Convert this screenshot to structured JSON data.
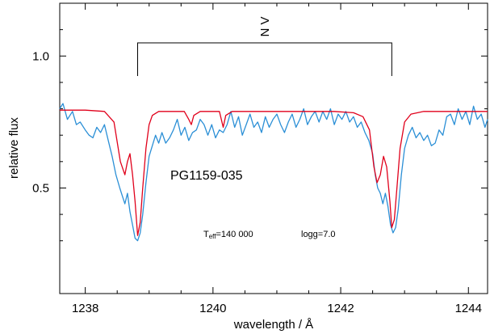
{
  "chart_data": {
    "type": "line",
    "xlabel": "wavelength / Å",
    "ylabel": "relative flux",
    "xlim": [
      1237.6,
      1244.3
    ],
    "ylim": [
      0.1,
      1.2
    ],
    "x_ticks": [
      1238,
      1240,
      1242,
      1244
    ],
    "y_ticks": [
      0.5,
      1.0
    ],
    "x_tick_labels": [
      "1238",
      "1240",
      "1242",
      "1244"
    ],
    "y_tick_labels": [
      "0.5",
      "1.0"
    ],
    "grid": false,
    "annotations": {
      "object": "PG1159-035",
      "teff_prefix": "T",
      "teff_subscript": "eff",
      "teff_value": "=140 000",
      "logg": "logg=7.0",
      "line_id": "N V",
      "line_positions": [
        1238.82,
        1242.8
      ],
      "bracket_flux": 1.05
    },
    "series": [
      {
        "color": "#e0001b",
        "role": "model",
        "x": [
          1237.6,
          1238.0,
          1238.3,
          1238.45,
          1238.55,
          1238.62,
          1238.66,
          1238.7,
          1238.74,
          1238.78,
          1238.82,
          1238.86,
          1238.9,
          1238.95,
          1239.0,
          1239.05,
          1239.15,
          1239.3,
          1239.55,
          1239.62,
          1239.66,
          1239.7,
          1239.8,
          1240.1,
          1240.16,
          1240.2,
          1240.3,
          1240.6,
          1241.0,
          1241.5,
          1241.9,
          1242.2,
          1242.35,
          1242.45,
          1242.52,
          1242.57,
          1242.62,
          1242.67,
          1242.72,
          1242.77,
          1242.8,
          1242.84,
          1242.88,
          1242.93,
          1243.0,
          1243.1,
          1243.3,
          1243.6,
          1244.0,
          1244.3
        ],
        "y": [
          0.795,
          0.795,
          0.79,
          0.75,
          0.6,
          0.55,
          0.6,
          0.63,
          0.55,
          0.45,
          0.32,
          0.37,
          0.5,
          0.65,
          0.74,
          0.775,
          0.79,
          0.79,
          0.79,
          0.76,
          0.74,
          0.775,
          0.79,
          0.79,
          0.73,
          0.775,
          0.79,
          0.79,
          0.79,
          0.79,
          0.79,
          0.785,
          0.77,
          0.72,
          0.58,
          0.52,
          0.55,
          0.62,
          0.58,
          0.45,
          0.35,
          0.38,
          0.5,
          0.65,
          0.75,
          0.78,
          0.79,
          0.79,
          0.79,
          0.79
        ]
      },
      {
        "color": "#2b8fd6",
        "role": "observed",
        "x": [
          1237.6,
          1237.65,
          1237.72,
          1237.8,
          1237.86,
          1237.92,
          1238.0,
          1238.06,
          1238.12,
          1238.18,
          1238.24,
          1238.3,
          1238.36,
          1238.42,
          1238.48,
          1238.54,
          1238.58,
          1238.62,
          1238.66,
          1238.7,
          1238.74,
          1238.78,
          1238.82,
          1238.86,
          1238.9,
          1238.95,
          1239.0,
          1239.05,
          1239.1,
          1239.15,
          1239.2,
          1239.26,
          1239.32,
          1239.38,
          1239.44,
          1239.5,
          1239.56,
          1239.62,
          1239.68,
          1239.74,
          1239.8,
          1239.86,
          1239.92,
          1239.98,
          1240.04,
          1240.1,
          1240.16,
          1240.22,
          1240.28,
          1240.34,
          1240.4,
          1240.46,
          1240.52,
          1240.58,
          1240.64,
          1240.7,
          1240.76,
          1240.82,
          1240.88,
          1240.94,
          1241.0,
          1241.06,
          1241.12,
          1241.18,
          1241.24,
          1241.3,
          1241.36,
          1241.42,
          1241.48,
          1241.54,
          1241.6,
          1241.66,
          1241.72,
          1241.78,
          1241.84,
          1241.9,
          1241.96,
          1242.02,
          1242.08,
          1242.14,
          1242.2,
          1242.26,
          1242.32,
          1242.38,
          1242.44,
          1242.5,
          1242.54,
          1242.58,
          1242.62,
          1242.66,
          1242.7,
          1242.74,
          1242.78,
          1242.82,
          1242.86,
          1242.9,
          1242.95,
          1243.0,
          1243.06,
          1243.12,
          1243.18,
          1243.24,
          1243.3,
          1243.36,
          1243.42,
          1243.48,
          1243.54,
          1243.6,
          1243.66,
          1243.72,
          1243.78,
          1243.84,
          1243.9,
          1243.96,
          1244.02,
          1244.08,
          1244.14,
          1244.2,
          1244.26,
          1244.3
        ],
        "y": [
          0.8,
          0.82,
          0.76,
          0.79,
          0.74,
          0.75,
          0.72,
          0.7,
          0.69,
          0.73,
          0.71,
          0.74,
          0.68,
          0.62,
          0.55,
          0.5,
          0.47,
          0.44,
          0.48,
          0.41,
          0.36,
          0.31,
          0.3,
          0.33,
          0.4,
          0.52,
          0.62,
          0.66,
          0.7,
          0.67,
          0.71,
          0.67,
          0.69,
          0.72,
          0.76,
          0.7,
          0.73,
          0.68,
          0.71,
          0.72,
          0.76,
          0.74,
          0.7,
          0.74,
          0.69,
          0.72,
          0.71,
          0.74,
          0.79,
          0.73,
          0.77,
          0.7,
          0.74,
          0.78,
          0.73,
          0.75,
          0.71,
          0.77,
          0.73,
          0.76,
          0.78,
          0.74,
          0.71,
          0.75,
          0.78,
          0.73,
          0.76,
          0.8,
          0.74,
          0.77,
          0.79,
          0.75,
          0.79,
          0.76,
          0.8,
          0.74,
          0.78,
          0.76,
          0.79,
          0.75,
          0.77,
          0.73,
          0.75,
          0.71,
          0.68,
          0.63,
          0.55,
          0.5,
          0.48,
          0.44,
          0.48,
          0.43,
          0.36,
          0.33,
          0.35,
          0.42,
          0.55,
          0.65,
          0.7,
          0.73,
          0.69,
          0.71,
          0.68,
          0.7,
          0.66,
          0.67,
          0.72,
          0.7,
          0.77,
          0.78,
          0.74,
          0.8,
          0.76,
          0.79,
          0.74,
          0.81,
          0.76,
          0.78,
          0.73,
          0.76
        ]
      }
    ]
  }
}
